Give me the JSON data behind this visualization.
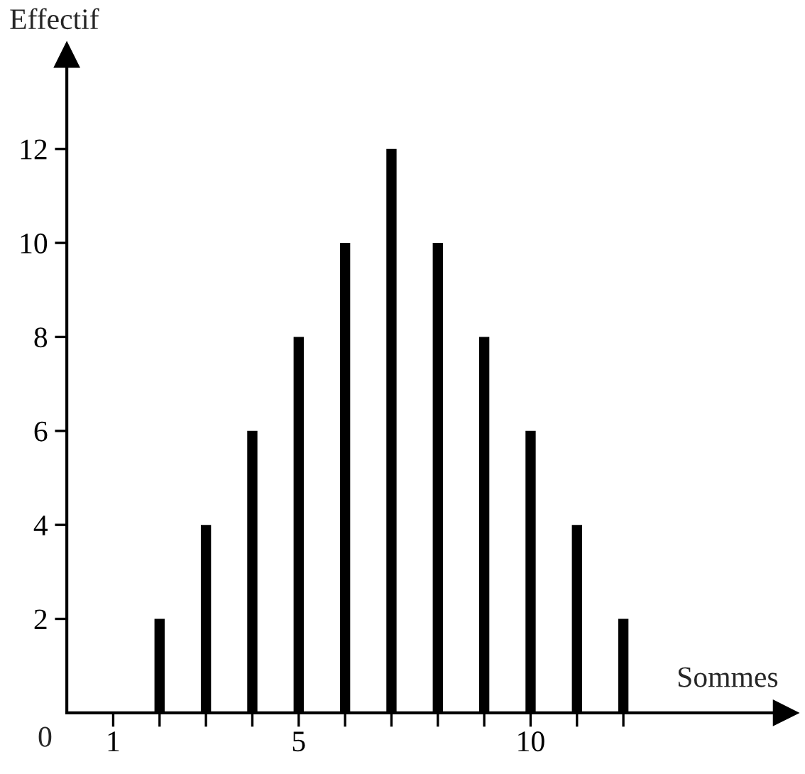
{
  "chart_data": {
    "type": "bar",
    "xlabel": "Sommes",
    "ylabel": "Effectif",
    "x": [
      2,
      3,
      4,
      5,
      6,
      7,
      8,
      9,
      10,
      11,
      12
    ],
    "values": [
      2,
      4,
      6,
      8,
      10,
      12,
      10,
      8,
      6,
      4,
      2
    ],
    "color": "#000000",
    "xlim": [
      0,
      15.5
    ],
    "ylim": [
      0,
      14
    ],
    "annotations": [
      "0"
    ],
    "xticks": [
      1,
      {
        "value": 2,
        "label": null
      },
      {
        "value": 3,
        "label": null
      },
      {
        "value": 4,
        "label": null
      },
      5,
      {
        "value": 6,
        "label": null
      },
      {
        "value": 7,
        "label": null
      },
      {
        "value": 8,
        "label": null
      },
      {
        "value": 9,
        "label": null
      },
      10,
      {
        "value": 11,
        "label": null
      },
      {
        "value": 12,
        "label": null
      }
    ],
    "yticks": [
      2,
      4,
      6,
      8,
      10,
      12
    ],
    "grid": false,
    "legend": false
  }
}
